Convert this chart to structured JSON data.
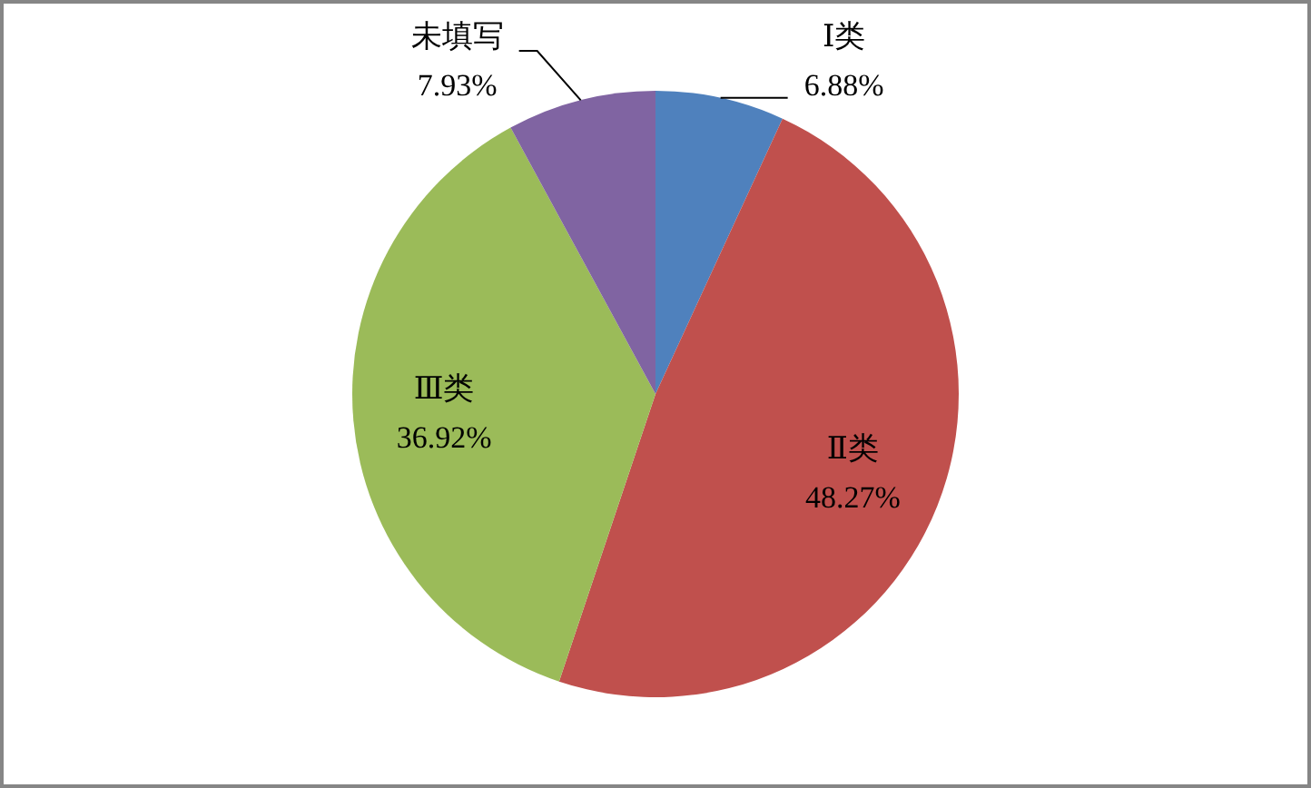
{
  "chart_data": {
    "type": "pie",
    "categories": [
      "Ⅰ类",
      "Ⅱ类",
      "Ⅲ类",
      "未填写"
    ],
    "values": [
      6.88,
      48.27,
      36.92,
      7.93
    ],
    "colors": [
      "#4f81bd",
      "#c0504d",
      "#9bbb59",
      "#8064a2"
    ],
    "value_labels": [
      "6.88%",
      "48.27%",
      "36.92%",
      "7.93%"
    ]
  }
}
